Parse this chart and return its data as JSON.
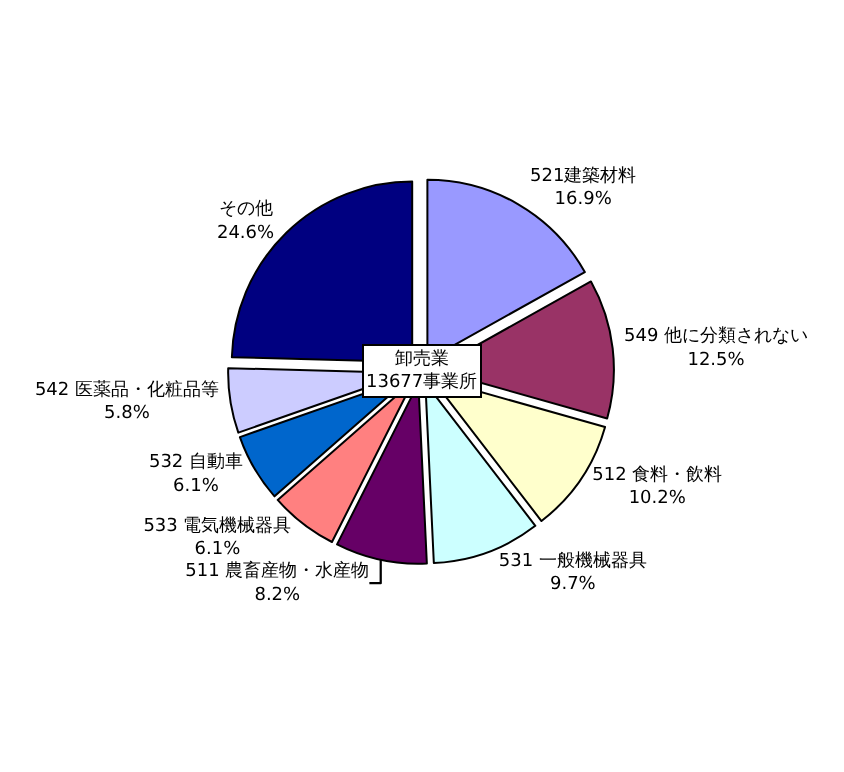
{
  "chart_data": {
    "type": "pie",
    "categories": [
      "521建築材料",
      "549 他に分類されない",
      "512 食料・飲料",
      "531 一般機械器具",
      "511 農畜産物・水産物",
      "533 電気機械器具",
      "532 自動車",
      "542 医薬品・化粧品等",
      "その他"
    ],
    "values": [
      16.9,
      12.5,
      10.2,
      9.7,
      8.2,
      6.1,
      6.1,
      5.8,
      24.6
    ],
    "value_labels": [
      "16.9%",
      "12.5%",
      "10.2%",
      "9.7%",
      "8.2%",
      "6.1%",
      "6.1%",
      "5.8%",
      "24.6%"
    ],
    "colors": [
      "#9999ff",
      "#993366",
      "#ffffcc",
      "#ccffff",
      "#660066",
      "#ff8080",
      "#0066cc",
      "#ccccff",
      "#000080"
    ],
    "annotations": [
      "卸売業\n13677事業所"
    ],
    "legend": false
  }
}
